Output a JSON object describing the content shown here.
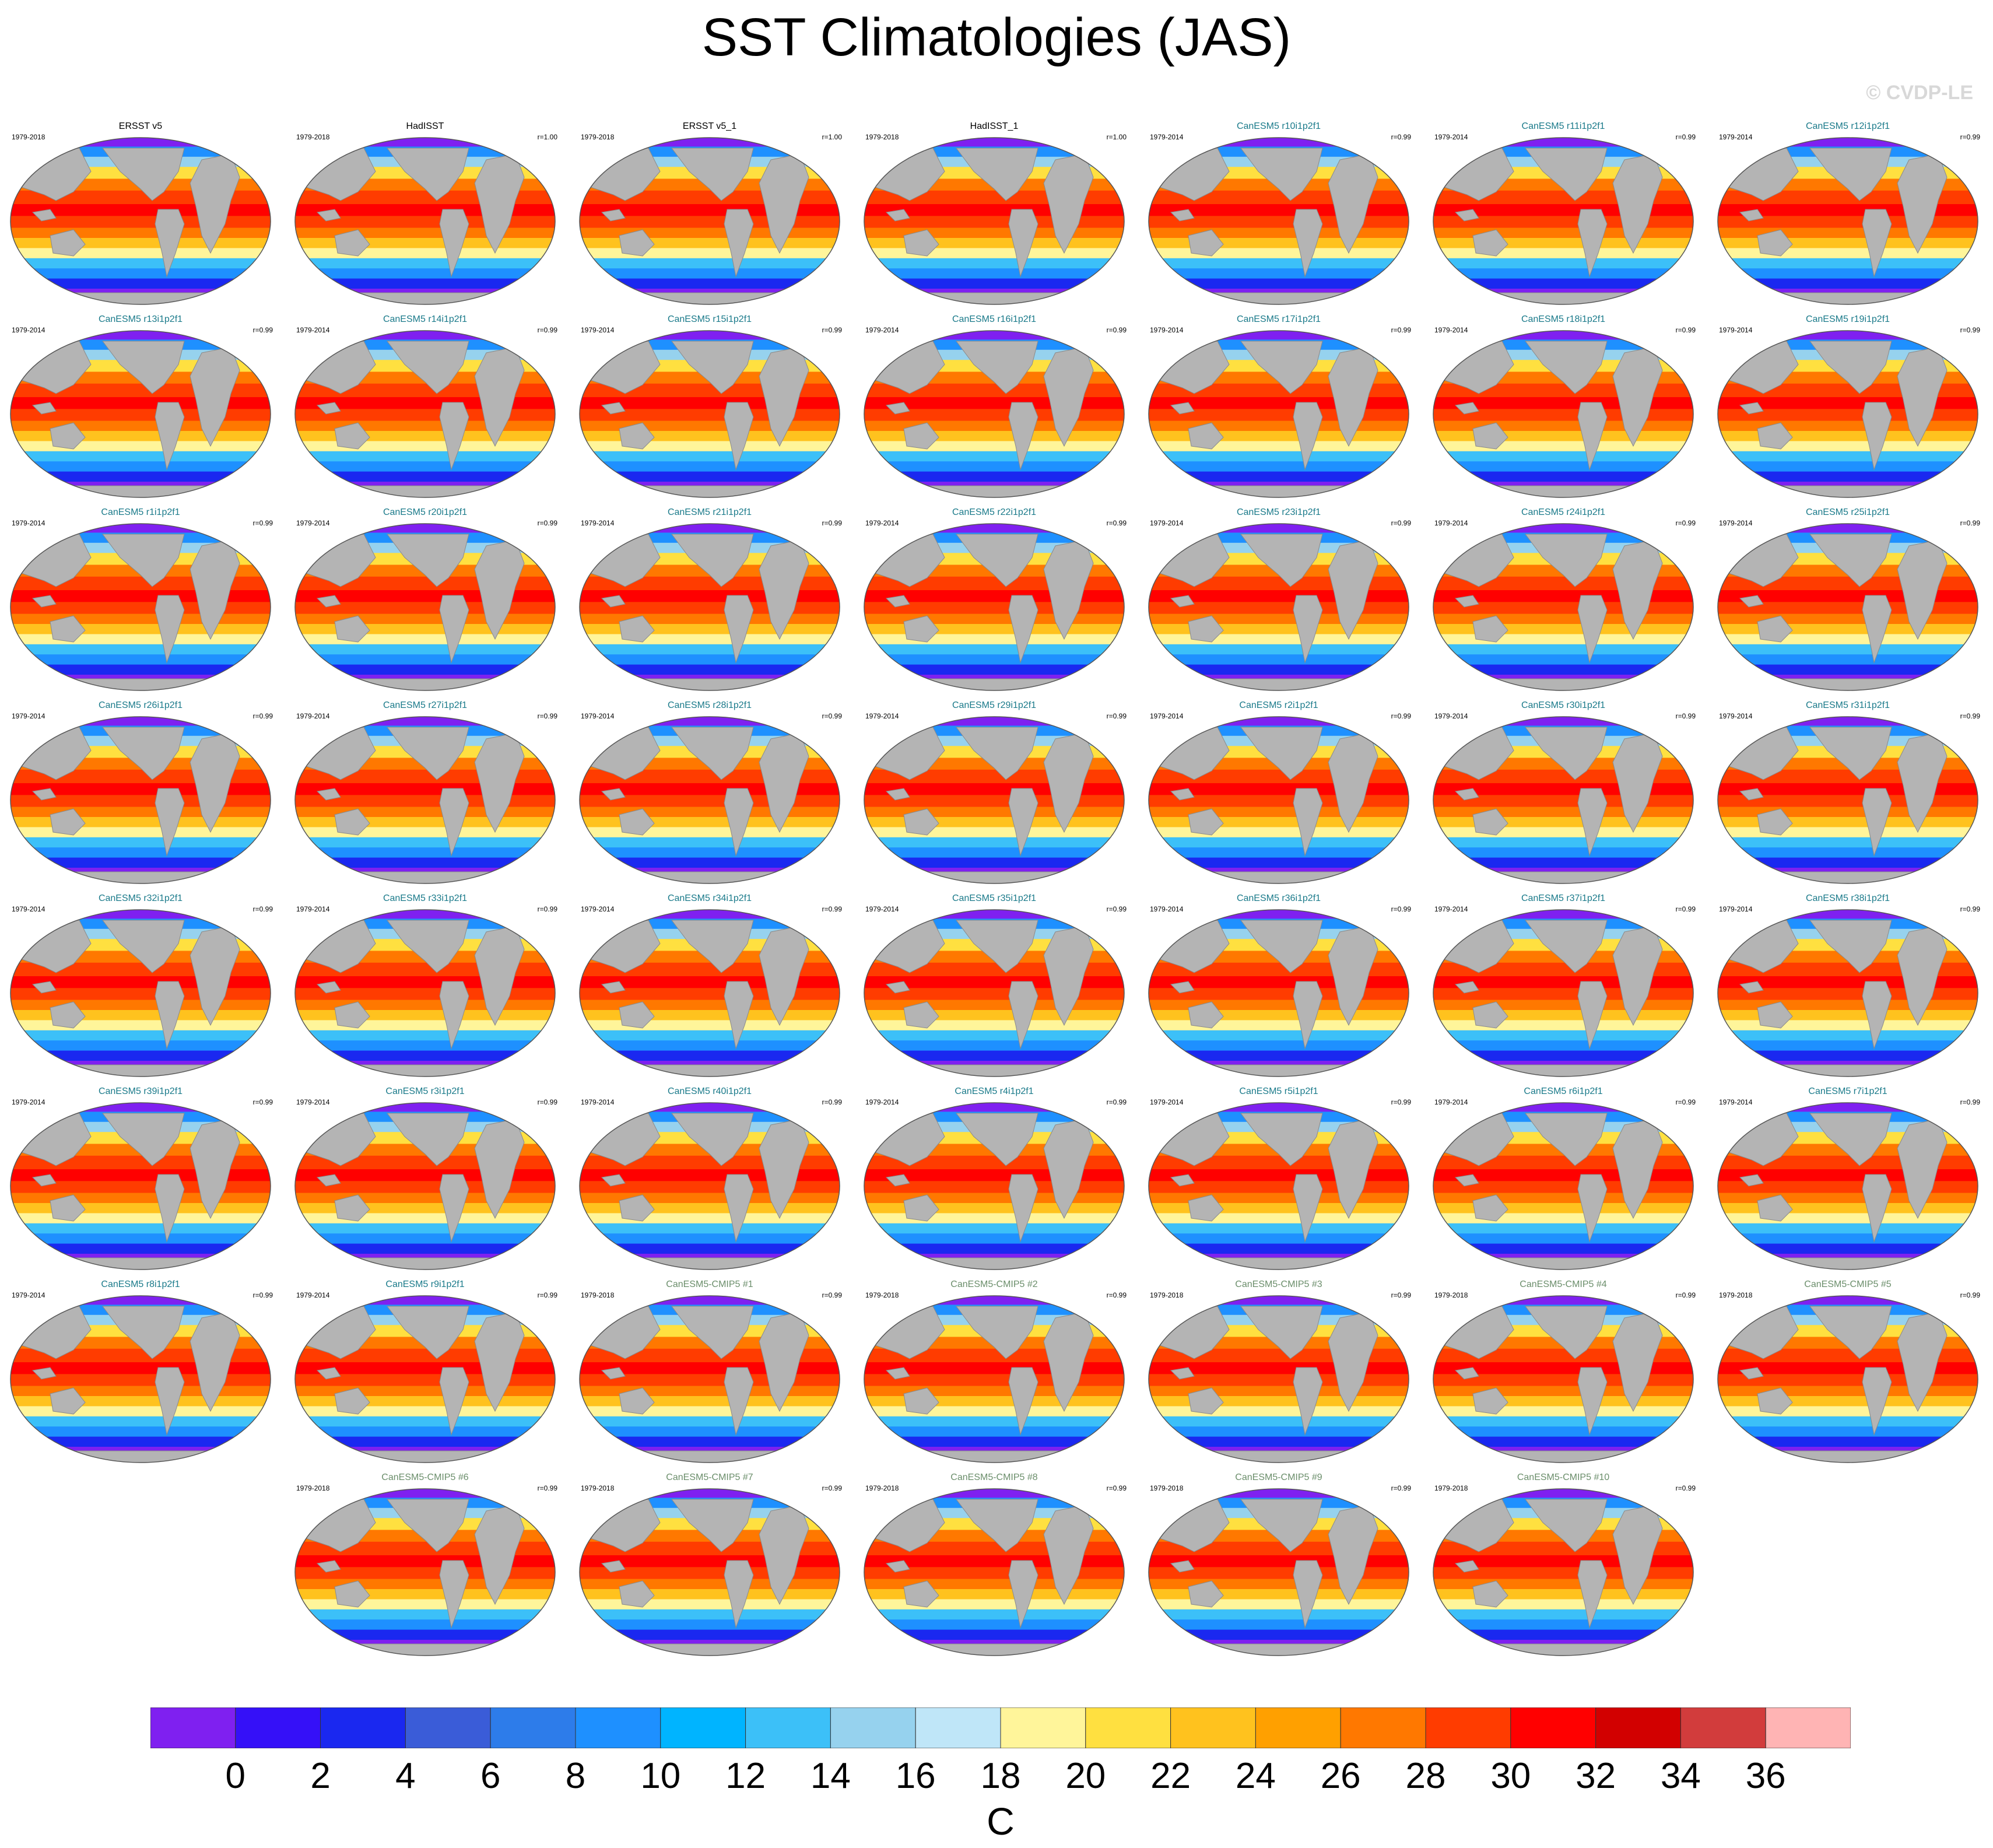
{
  "title": "SST Climatologies (JAS)",
  "watermark": "© CVDP-LE",
  "unit": "C",
  "colorbar": {
    "colors": [
      "#7f20f0",
      "#3510f8",
      "#1a28f0",
      "#3a5cd8",
      "#2d7cea",
      "#1e90ff",
      "#00b4ff",
      "#3cc0f8",
      "#96d2ee",
      "#bfe6f8",
      "#fff59a",
      "#ffe040",
      "#ffc21e",
      "#ffa000",
      "#ff7800",
      "#ff3c00",
      "#ff0000",
      "#d20000",
      "#d23c3c",
      "#ffb4b4"
    ],
    "tick_labels": [
      "0",
      "2",
      "4",
      "6",
      "8",
      "10",
      "12",
      "14",
      "16",
      "18",
      "20",
      "22",
      "24",
      "26",
      "28",
      "30",
      "32",
      "34",
      "36"
    ]
  },
  "panels": [
    {
      "name": "ERSST v5",
      "years": "1979-2018",
      "r": "",
      "kind": "obs"
    },
    {
      "name": "HadISST",
      "years": "1979-2018",
      "r": "r=1.00",
      "kind": "obs"
    },
    {
      "name": "ERSST v5_1",
      "years": "1979-2018",
      "r": "r=1.00",
      "kind": "obs"
    },
    {
      "name": "HadISST_1",
      "years": "1979-2018",
      "r": "r=1.00",
      "kind": "obs"
    },
    {
      "name": "CanESM5 r10i1p2f1",
      "years": "1979-2014",
      "r": "r=0.99",
      "kind": "le"
    },
    {
      "name": "CanESM5 r11i1p2f1",
      "years": "1979-2014",
      "r": "r=0.99",
      "kind": "le"
    },
    {
      "name": "CanESM5 r12i1p2f1",
      "years": "1979-2014",
      "r": "r=0.99",
      "kind": "le"
    },
    {
      "name": "CanESM5 r13i1p2f1",
      "years": "1979-2014",
      "r": "r=0.99",
      "kind": "le"
    },
    {
      "name": "CanESM5 r14i1p2f1",
      "years": "1979-2014",
      "r": "r=0.99",
      "kind": "le"
    },
    {
      "name": "CanESM5 r15i1p2f1",
      "years": "1979-2014",
      "r": "r=0.99",
      "kind": "le"
    },
    {
      "name": "CanESM5 r16i1p2f1",
      "years": "1979-2014",
      "r": "r=0.99",
      "kind": "le"
    },
    {
      "name": "CanESM5 r17i1p2f1",
      "years": "1979-2014",
      "r": "r=0.99",
      "kind": "le"
    },
    {
      "name": "CanESM5 r18i1p2f1",
      "years": "1979-2014",
      "r": "r=0.99",
      "kind": "le"
    },
    {
      "name": "CanESM5 r19i1p2f1",
      "years": "1979-2014",
      "r": "r=0.99",
      "kind": "le"
    },
    {
      "name": "CanESM5 r1i1p2f1",
      "years": "1979-2014",
      "r": "r=0.99",
      "kind": "le"
    },
    {
      "name": "CanESM5 r20i1p2f1",
      "years": "1979-2014",
      "r": "r=0.99",
      "kind": "le"
    },
    {
      "name": "CanESM5 r21i1p2f1",
      "years": "1979-2014",
      "r": "r=0.99",
      "kind": "le"
    },
    {
      "name": "CanESM5 r22i1p2f1",
      "years": "1979-2014",
      "r": "r=0.99",
      "kind": "le"
    },
    {
      "name": "CanESM5 r23i1p2f1",
      "years": "1979-2014",
      "r": "r=0.99",
      "kind": "le"
    },
    {
      "name": "CanESM5 r24i1p2f1",
      "years": "1979-2014",
      "r": "r=0.99",
      "kind": "le"
    },
    {
      "name": "CanESM5 r25i1p2f1",
      "years": "1979-2014",
      "r": "r=0.99",
      "kind": "le"
    },
    {
      "name": "CanESM5 r26i1p2f1",
      "years": "1979-2014",
      "r": "r=0.99",
      "kind": "le"
    },
    {
      "name": "CanESM5 r27i1p2f1",
      "years": "1979-2014",
      "r": "r=0.99",
      "kind": "le"
    },
    {
      "name": "CanESM5 r28i1p2f1",
      "years": "1979-2014",
      "r": "r=0.99",
      "kind": "le"
    },
    {
      "name": "CanESM5 r29i1p2f1",
      "years": "1979-2014",
      "r": "r=0.99",
      "kind": "le"
    },
    {
      "name": "CanESM5 r2i1p2f1",
      "years": "1979-2014",
      "r": "r=0.99",
      "kind": "le"
    },
    {
      "name": "CanESM5 r30i1p2f1",
      "years": "1979-2014",
      "r": "r=0.99",
      "kind": "le"
    },
    {
      "name": "CanESM5 r31i1p2f1",
      "years": "1979-2014",
      "r": "r=0.99",
      "kind": "le"
    },
    {
      "name": "CanESM5 r32i1p2f1",
      "years": "1979-2014",
      "r": "r=0.99",
      "kind": "le"
    },
    {
      "name": "CanESM5 r33i1p2f1",
      "years": "1979-2014",
      "r": "r=0.99",
      "kind": "le"
    },
    {
      "name": "CanESM5 r34i1p2f1",
      "years": "1979-2014",
      "r": "r=0.99",
      "kind": "le"
    },
    {
      "name": "CanESM5 r35i1p2f1",
      "years": "1979-2014",
      "r": "r=0.99",
      "kind": "le"
    },
    {
      "name": "CanESM5 r36i1p2f1",
      "years": "1979-2014",
      "r": "r=0.99",
      "kind": "le"
    },
    {
      "name": "CanESM5 r37i1p2f1",
      "years": "1979-2014",
      "r": "r=0.99",
      "kind": "le"
    },
    {
      "name": "CanESM5 r38i1p2f1",
      "years": "1979-2014",
      "r": "r=0.99",
      "kind": "le"
    },
    {
      "name": "CanESM5 r39i1p2f1",
      "years": "1979-2014",
      "r": "r=0.99",
      "kind": "le"
    },
    {
      "name": "CanESM5 r3i1p2f1",
      "years": "1979-2014",
      "r": "r=0.99",
      "kind": "le"
    },
    {
      "name": "CanESM5 r40i1p2f1",
      "years": "1979-2014",
      "r": "r=0.99",
      "kind": "le"
    },
    {
      "name": "CanESM5 r4i1p2f1",
      "years": "1979-2014",
      "r": "r=0.99",
      "kind": "le"
    },
    {
      "name": "CanESM5 r5i1p2f1",
      "years": "1979-2014",
      "r": "r=0.99",
      "kind": "le"
    },
    {
      "name": "CanESM5 r6i1p2f1",
      "years": "1979-2014",
      "r": "r=0.99",
      "kind": "le"
    },
    {
      "name": "CanESM5 r7i1p2f1",
      "years": "1979-2014",
      "r": "r=0.99",
      "kind": "le"
    },
    {
      "name": "CanESM5 r8i1p2f1",
      "years": "1979-2014",
      "r": "r=0.99",
      "kind": "le"
    },
    {
      "name": "CanESM5 r9i1p2f1",
      "years": "1979-2014",
      "r": "r=0.99",
      "kind": "le"
    },
    {
      "name": "CanESM5-CMIP5 #1",
      "years": "1979-2018",
      "r": "r=0.99",
      "kind": "c5"
    },
    {
      "name": "CanESM5-CMIP5 #2",
      "years": "1979-2018",
      "r": "r=0.99",
      "kind": "c5"
    },
    {
      "name": "CanESM5-CMIP5 #3",
      "years": "1979-2018",
      "r": "r=0.99",
      "kind": "c5"
    },
    {
      "name": "CanESM5-CMIP5 #4",
      "years": "1979-2018",
      "r": "r=0.99",
      "kind": "c5"
    },
    {
      "name": "CanESM5-CMIP5 #5",
      "years": "1979-2018",
      "r": "r=0.99",
      "kind": "c5"
    },
    {
      "name": "CanESM5-CMIP5 #6",
      "years": "1979-2018",
      "r": "r=0.99",
      "kind": "c5"
    },
    {
      "name": "CanESM5-CMIP5 #7",
      "years": "1979-2018",
      "r": "r=0.99",
      "kind": "c5"
    },
    {
      "name": "CanESM5-CMIP5 #8",
      "years": "1979-2018",
      "r": "r=0.99",
      "kind": "c5"
    },
    {
      "name": "CanESM5-CMIP5 #9",
      "years": "1979-2018",
      "r": "r=0.99",
      "kind": "c5"
    },
    {
      "name": "CanESM5-CMIP5 #10",
      "years": "1979-2018",
      "r": "r=0.99",
      "kind": "c5"
    }
  ]
}
